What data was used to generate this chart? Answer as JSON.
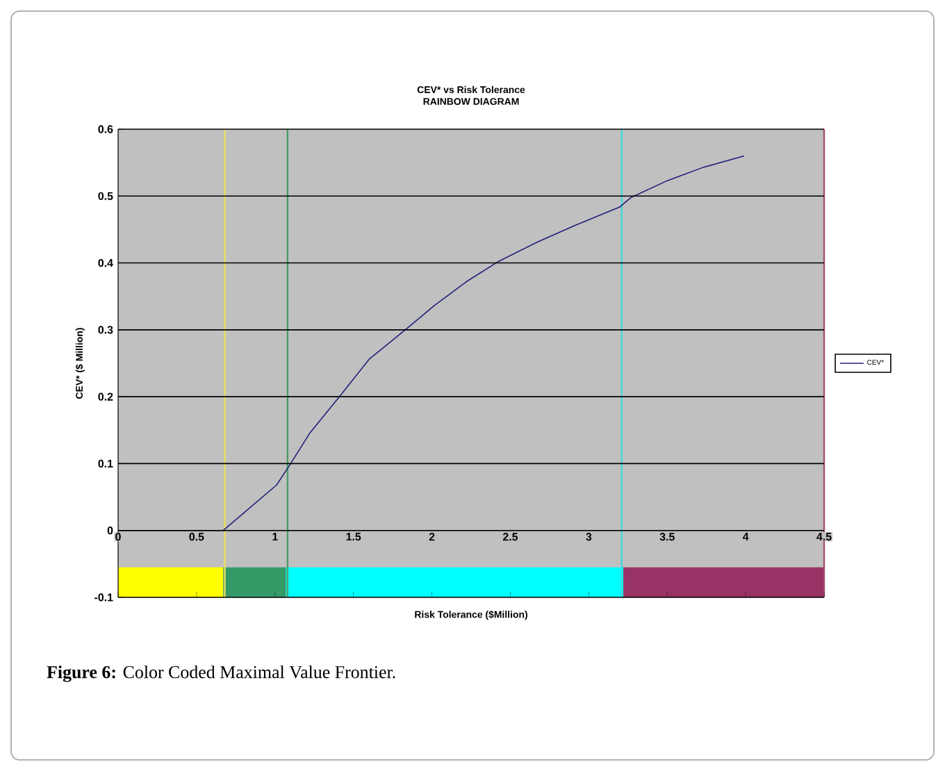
{
  "chart_data": {
    "type": "line",
    "title": "CEV* vs Risk Tolerance",
    "subtitle": "RAINBOW DIAGRAM",
    "xlabel": "Risk Tolerance ($Million)",
    "ylabel": "CEV* ($ Million)",
    "x": [
      0,
      0.67,
      1.01,
      1.1,
      1.22,
      1.41,
      1.6,
      1.83,
      2.02,
      2.22,
      2.43,
      2.67,
      2.91,
      3.2,
      3.27,
      3.5,
      3.73,
      3.99
    ],
    "series": [
      {
        "name": "CEV*",
        "color": "#1f1f7a",
        "values": [
          0,
          0,
          0.068,
          0.1,
          0.145,
          0.2,
          0.256,
          0.3,
          0.337,
          0.372,
          0.403,
          0.431,
          0.456,
          0.484,
          0.498,
          0.523,
          0.543,
          0.56
        ]
      }
    ],
    "xlim": [
      0,
      4.5
    ],
    "xticks": [
      0,
      0.5,
      1,
      1.5,
      2,
      2.5,
      3,
      3.5,
      4,
      4.5
    ],
    "ylim": [
      -0.1,
      0.6
    ],
    "yticks": [
      -0.1,
      0,
      0.1,
      0.2,
      0.3,
      0.4,
      0.5,
      0.6
    ],
    "grid": "y",
    "legend": "right",
    "marker": "none",
    "line_style": "solid",
    "ref_lines": [
      {
        "axis": "x",
        "value": 0.68,
        "color": "#e8e060"
      },
      {
        "axis": "x",
        "value": 1.08,
        "color": "#4f9a6a"
      },
      {
        "axis": "x",
        "value": 3.21,
        "color": "#40d8d8"
      },
      {
        "axis": "x",
        "value": 4.5,
        "color": "#a05070"
      }
    ],
    "bands": [
      {
        "axis": "x",
        "from": 0,
        "to": 0.67,
        "color": "#ffff00"
      },
      {
        "axis": "x",
        "from": 0.67,
        "to": 1.07,
        "color": "#339966"
      },
      {
        "axis": "x",
        "from": 1.07,
        "to": 3.22,
        "color": "#00ffff"
      },
      {
        "axis": "x",
        "from": 3.22,
        "to": 4.5,
        "color": "#993366"
      }
    ],
    "annotations": [
      "**Figure 6:** Color Coded Maximal Value Frontier."
    ]
  }
}
